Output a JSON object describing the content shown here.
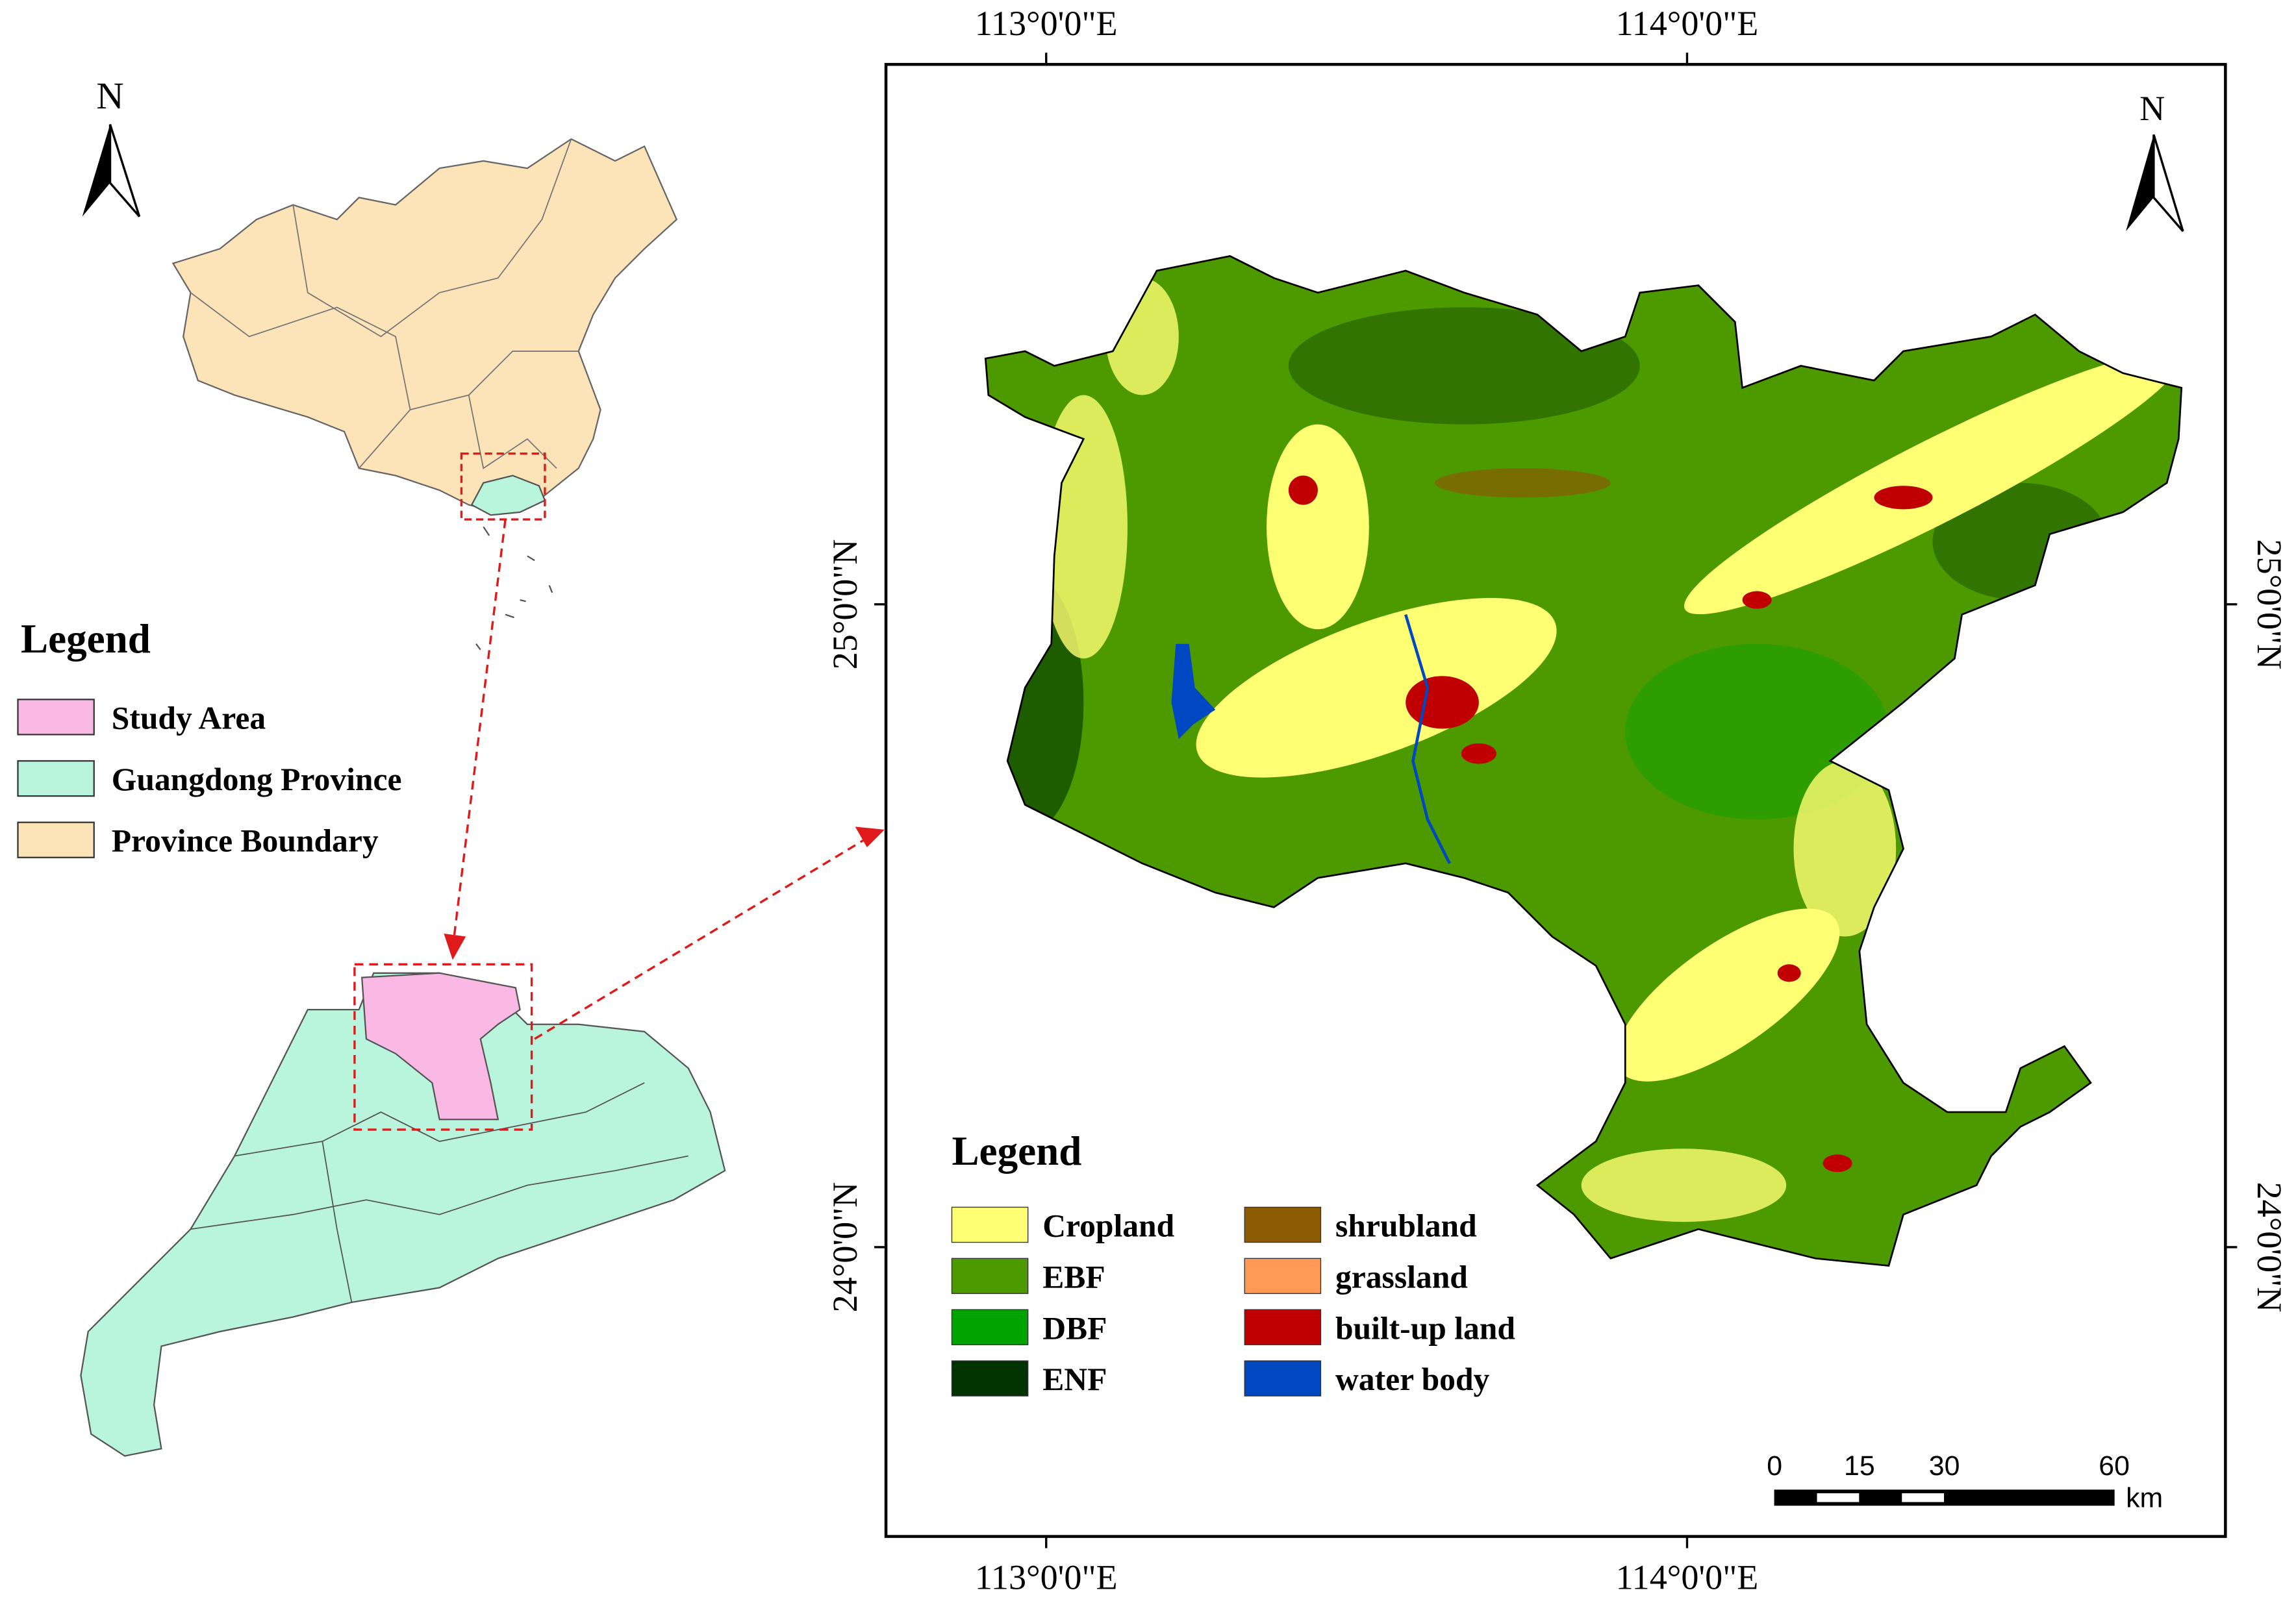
{
  "left_panel": {
    "north_label": "N",
    "legend": {
      "title": "Legend",
      "items": [
        {
          "label": "Study Area",
          "color": "#f9b9e4"
        },
        {
          "label": "Guangdong Province",
          "color": "#b9f5dc"
        },
        {
          "label": "Province Boundary",
          "color": "#fde3b8"
        }
      ]
    }
  },
  "map": {
    "north_label": "N",
    "xlim": [
      112.75,
      114.84
    ],
    "ylim": [
      23.55,
      25.84
    ],
    "xticks": [
      {
        "value": 113,
        "label": "113°0'0\"E"
      },
      {
        "value": 114,
        "label": "114°0'0\"E"
      }
    ],
    "yticks": [
      {
        "value": 25,
        "label": "25°0'0\"N"
      },
      {
        "value": 24,
        "label": "24°0'0\"N"
      }
    ],
    "legend": {
      "title": "Legend",
      "items": [
        {
          "label": "Cropland",
          "color": "#ffff73"
        },
        {
          "label": "EBF",
          "color": "#4c9900"
        },
        {
          "label": "DBF",
          "color": "#00a300"
        },
        {
          "label": "ENF",
          "color": "#003300"
        },
        {
          "label": "shrubland",
          "color": "#8c5a00"
        },
        {
          "label": "grassland",
          "color": "#ff9955"
        },
        {
          "label": "built-up land",
          "color": "#c00000"
        },
        {
          "label": "water body",
          "color": "#0047c2"
        }
      ]
    },
    "scale_bar": {
      "ticks": [
        0,
        15,
        30,
        60
      ],
      "unit": "km"
    }
  }
}
